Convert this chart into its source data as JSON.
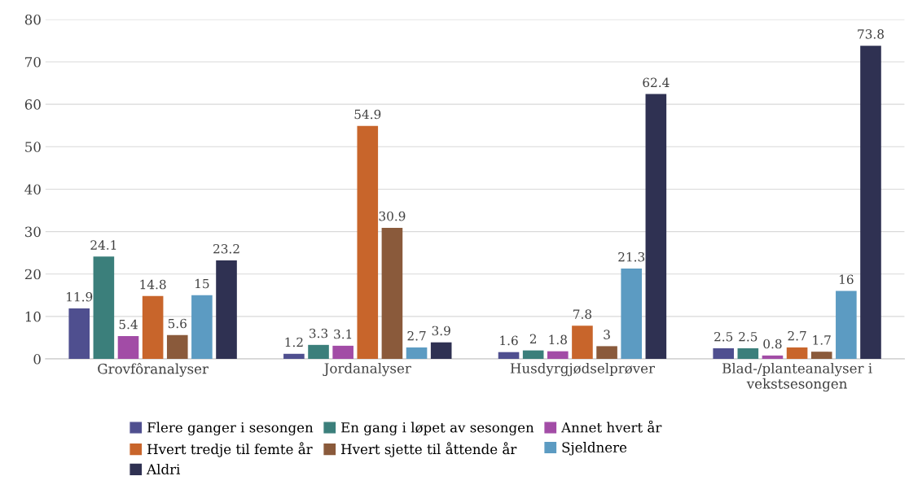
{
  "chart_data": {
    "type": "bar",
    "categories": [
      "Grovfôranalyser",
      "Jordanalyser",
      "Husdyrgjødselprøver",
      "Blad-/planteanalyser i vekstsesongen"
    ],
    "series": [
      {
        "name": "Flere ganger i sesongen",
        "color": "#4f4f8f",
        "values": [
          11.9,
          1.2,
          1.6,
          2.5
        ]
      },
      {
        "name": "En gang i løpet av sesongen",
        "color": "#3b7f7b",
        "values": [
          24.1,
          3.3,
          2,
          2.5
        ]
      },
      {
        "name": "Annet hvert år",
        "color": "#a24ca6",
        "values": [
          5.4,
          3.1,
          1.8,
          0.8
        ]
      },
      {
        "name": "Hvert tredje til femte år",
        "color": "#c8652b",
        "values": [
          14.8,
          54.9,
          7.8,
          2.7
        ]
      },
      {
        "name": "Hvert sjette til åttende år",
        "color": "#8a5a3b",
        "values": [
          5.6,
          30.9,
          3,
          1.7
        ]
      },
      {
        "name": "Sjeldnere",
        "color": "#5c9bc2",
        "values": [
          15,
          2.7,
          21.3,
          16
        ]
      },
      {
        "name": "Aldri",
        "color": "#2f3152",
        "values": [
          23.2,
          3.9,
          62.4,
          73.8
        ]
      }
    ],
    "ylim": [
      0,
      80
    ],
    "yticks": [
      0,
      10,
      20,
      30,
      40,
      50,
      60,
      70,
      80
    ],
    "grid": "y",
    "legend": "bottom",
    "data_labels": true
  }
}
